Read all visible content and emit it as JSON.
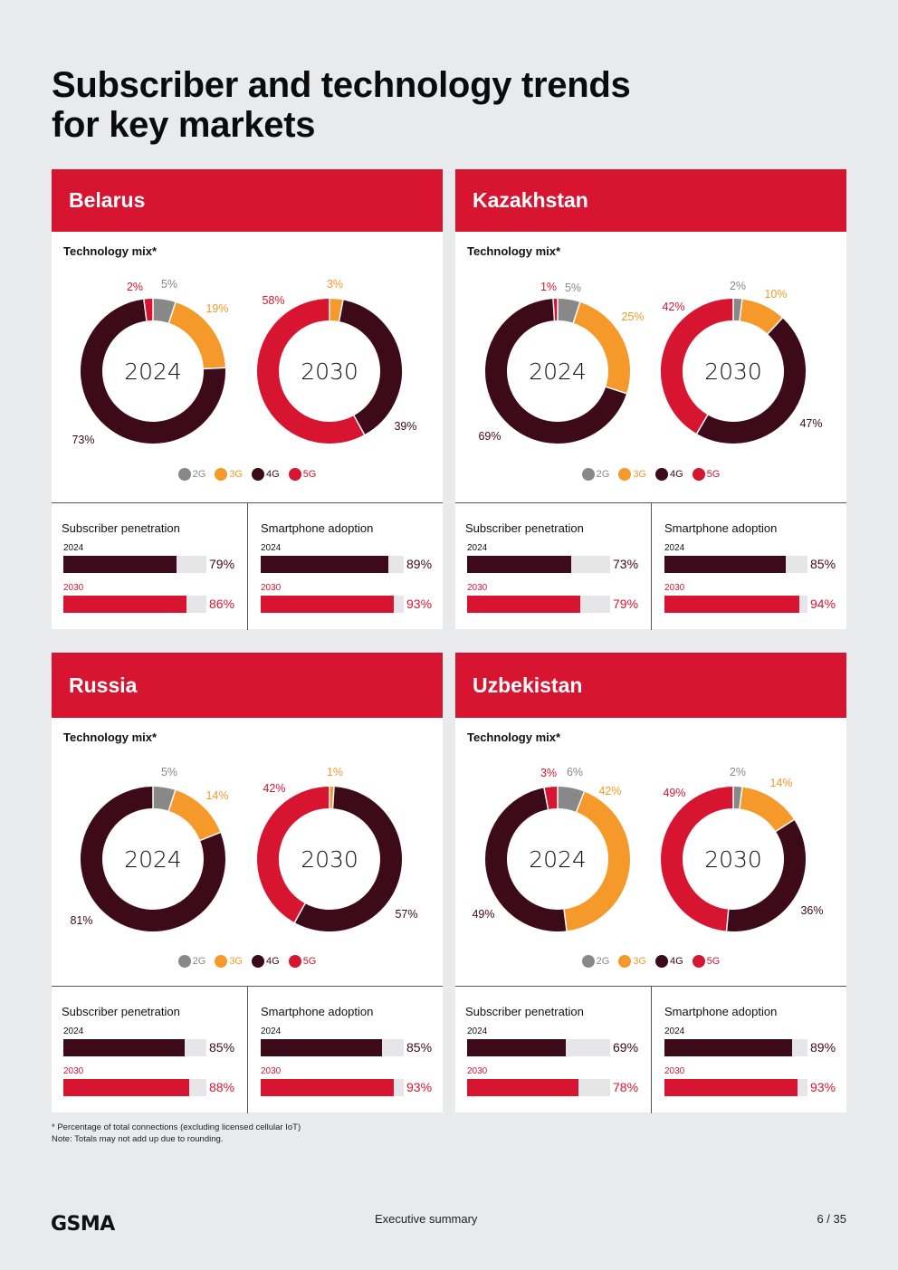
{
  "title": {
    "line1": "Subscriber and technology trends",
    "line2": "for key markets"
  },
  "colors": {
    "2G": "#888888",
    "3G": "#f5992a",
    "4G": "#3d0a19",
    "5G": "#d71530"
  },
  "legend": [
    "2G",
    "3G",
    "4G",
    "5G"
  ],
  "mix_title": "Technology mix*",
  "subscriber_title": "Subscriber penetration",
  "smartphone_title": "Smartphone adoption",
  "year_2024": "2024",
  "year_2030": "2030",
  "markets": [
    {
      "name": "Belarus",
      "mix_2024": [
        {
          "tech": "2G",
          "value": 5,
          "label": "5%"
        },
        {
          "tech": "3G",
          "value": 19,
          "label": "19%"
        },
        {
          "tech": "4G",
          "value": 73,
          "label": "73%"
        },
        {
          "tech": "5G",
          "value": 2,
          "label": "2%"
        }
      ],
      "mix_2030": [
        {
          "tech": "3G",
          "value": 3,
          "label": "3%"
        },
        {
          "tech": "4G",
          "value": 39,
          "label": "39%"
        },
        {
          "tech": "5G",
          "value": 58,
          "label": "58%"
        }
      ],
      "subscriber": {
        "v2024": 79,
        "l2024": "79%",
        "v2030": 86,
        "l2030": "86%"
      },
      "smartphone": {
        "v2024": 89,
        "l2024": "89%",
        "v2030": 93,
        "l2030": "93%"
      }
    },
    {
      "name": "Kazakhstan",
      "mix_2024": [
        {
          "tech": "2G",
          "value": 5,
          "label": "5%"
        },
        {
          "tech": "3G",
          "value": 25,
          "label": "25%"
        },
        {
          "tech": "4G",
          "value": 69,
          "label": "69%"
        },
        {
          "tech": "5G",
          "value": 1,
          "label": "1%"
        }
      ],
      "mix_2030": [
        {
          "tech": "2G",
          "value": 2,
          "label": "2%"
        },
        {
          "tech": "3G",
          "value": 10,
          "label": "10%"
        },
        {
          "tech": "4G",
          "value": 47,
          "label": "47%"
        },
        {
          "tech": "5G",
          "value": 42,
          "label": "42%"
        }
      ],
      "subscriber": {
        "v2024": 73,
        "l2024": "73%",
        "v2030": 79,
        "l2030": "79%"
      },
      "smartphone": {
        "v2024": 85,
        "l2024": "85%",
        "v2030": 94,
        "l2030": "94%"
      }
    },
    {
      "name": "Russia",
      "mix_2024": [
        {
          "tech": "2G",
          "value": 5,
          "label": "5%"
        },
        {
          "tech": "3G",
          "value": 14,
          "label": "14%"
        },
        {
          "tech": "4G",
          "value": 81,
          "label": "81%"
        }
      ],
      "mix_2030": [
        {
          "tech": "3G",
          "value": 1,
          "label": "1%"
        },
        {
          "tech": "4G",
          "value": 57,
          "label": "57%"
        },
        {
          "tech": "5G",
          "value": 42,
          "label": "42%"
        }
      ],
      "subscriber": {
        "v2024": 85,
        "l2024": "85%",
        "v2030": 88,
        "l2030": "88%"
      },
      "smartphone": {
        "v2024": 85,
        "l2024": "85%",
        "v2030": 93,
        "l2030": "93%"
      }
    },
    {
      "name": "Uzbekistan",
      "mix_2024": [
        {
          "tech": "2G",
          "value": 6,
          "label": "6%"
        },
        {
          "tech": "3G",
          "value": 42,
          "label": "42%"
        },
        {
          "tech": "4G",
          "value": 49,
          "label": "49%"
        },
        {
          "tech": "5G",
          "value": 3,
          "label": "3%"
        }
      ],
      "mix_2030": [
        {
          "tech": "2G",
          "value": 2,
          "label": "2%"
        },
        {
          "tech": "3G",
          "value": 14,
          "label": "14%"
        },
        {
          "tech": "4G",
          "value": 36,
          "label": "36%"
        },
        {
          "tech": "5G",
          "value": 49,
          "label": "49%"
        }
      ],
      "subscriber": {
        "v2024": 69,
        "l2024": "69%",
        "v2030": 78,
        "l2030": "78%"
      },
      "smartphone": {
        "v2024": 89,
        "l2024": "89%",
        "v2030": 93,
        "l2030": "93%"
      }
    }
  ],
  "footnote": {
    "line1": "* Percentage of total connections (excluding licensed cellular IoT)",
    "line2": "Note: Totals may not add up due to rounding."
  },
  "footer": {
    "logo": "GSMA",
    "section": "Executive summary",
    "page": "6 / 35"
  }
}
